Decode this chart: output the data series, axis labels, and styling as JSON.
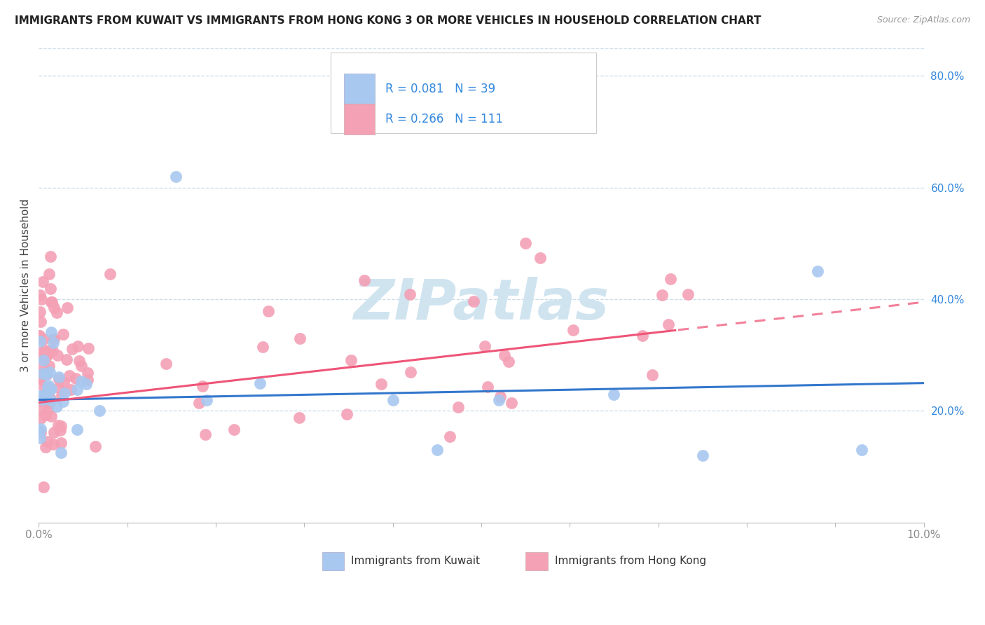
{
  "title": "IMMIGRANTS FROM KUWAIT VS IMMIGRANTS FROM HONG KONG 3 OR MORE VEHICLES IN HOUSEHOLD CORRELATION CHART",
  "source": "Source: ZipAtlas.com",
  "ylabel": "3 or more Vehicles in Household",
  "xmin": 0.0,
  "xmax": 10.0,
  "ymin": 0.0,
  "ymax": 85.0,
  "right_yticks": [
    20.0,
    40.0,
    60.0,
    80.0
  ],
  "kuwait_R": 0.081,
  "kuwait_N": 39,
  "hk_R": 0.266,
  "hk_N": 111,
  "kuwait_color": "#a8c8f0",
  "hk_color": "#f4a0b5",
  "kuwait_line_color": "#3377cc",
  "hk_line_color": "#ee5577",
  "watermark_color": "#d0e4f0",
  "text_color_blue": "#3388dd",
  "text_color_dark": "#222222",
  "grid_color": "#c8dcea",
  "tick_color": "#888888",
  "source_color": "#999999"
}
